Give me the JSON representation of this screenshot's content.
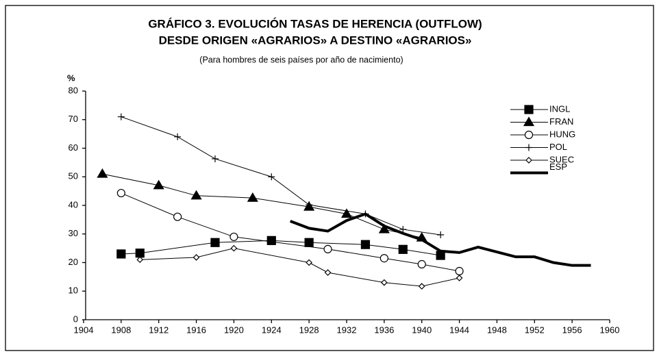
{
  "chart_data": {
    "type": "line",
    "title": [
      "GRÁFICO 3. EVOLUCIÓN TASAS DE HERENCIA (OUTFLOW)",
      "DESDE ORIGEN «AGRARIOS» A DESTINO «AGRARIOS»"
    ],
    "subtitle": "(Para hombres de seis países por año de nacimiento)",
    "y_label": "%",
    "xlim": [
      1904,
      1960
    ],
    "xticks": [
      1904,
      1908,
      1912,
      1916,
      1920,
      1924,
      1928,
      1932,
      1936,
      1940,
      1944,
      1948,
      1952,
      1956,
      1960
    ],
    "ylim": [
      0,
      80
    ],
    "yticks": [
      0,
      10,
      20,
      30,
      40,
      50,
      60,
      70,
      80
    ],
    "grid": false,
    "legend": "upper right",
    "series": [
      {
        "name": "INGL",
        "color": "#000000",
        "marker": "square",
        "x": [
          1908,
          1910,
          1918,
          1924,
          1928,
          1934,
          1938,
          1942
        ],
        "values": [
          23,
          23.3,
          27,
          27.7,
          27,
          26.3,
          24.6,
          22.5
        ]
      },
      {
        "name": "FRAN",
        "color": "#000000",
        "marker": "triangle",
        "x": [
          1906,
          1912,
          1916,
          1922,
          1928,
          1932,
          1936,
          1940
        ],
        "values": [
          51,
          47,
          43.4,
          42.6,
          39.5,
          37,
          31.6,
          28.7
        ]
      },
      {
        "name": "HUNG",
        "color": "#000000",
        "marker": "circle",
        "x": [
          1908,
          1914,
          1920,
          1930,
          1936,
          1940,
          1944
        ],
        "values": [
          44.3,
          36,
          29,
          24.7,
          21.5,
          19.4,
          17
        ]
      },
      {
        "name": "POL",
        "color": "#000000",
        "marker": "plus",
        "x": [
          1908,
          1914,
          1918,
          1924,
          1928,
          1934,
          1938,
          1942
        ],
        "values": [
          71,
          64,
          56.3,
          50,
          40.2,
          37,
          31.6,
          29.7
        ]
      },
      {
        "name": "SUEC",
        "color": "#000000",
        "marker": "diamond",
        "x": [
          1910,
          1916,
          1920,
          1928,
          1930,
          1936,
          1940,
          1944
        ],
        "values": [
          21,
          21.8,
          25,
          20,
          16.5,
          13,
          11.7,
          14.6
        ]
      },
      {
        "name": "ESP",
        "color": "#000000",
        "marker": "none",
        "x": [
          1926,
          1928,
          1930,
          1932,
          1934,
          1936,
          1938,
          1940,
          1942,
          1944,
          1946,
          1948,
          1950,
          1952,
          1954,
          1956,
          1958
        ],
        "values": [
          34.5,
          32,
          31,
          34.7,
          37,
          32.8,
          30.2,
          28,
          24,
          23.5,
          25.4,
          23.7,
          22,
          22,
          20,
          19,
          19
        ]
      }
    ]
  }
}
